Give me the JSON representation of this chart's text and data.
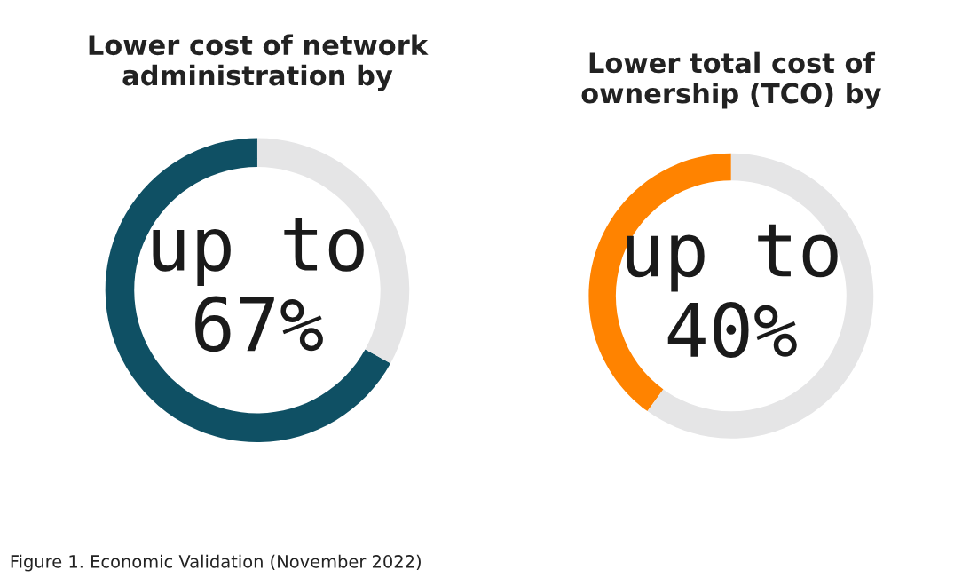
{
  "chart_data": [
    {
      "type": "donut",
      "title": "Lower cost of network\nadministration by",
      "categories": [
        null,
        null
      ],
      "values": [
        67,
        33
      ],
      "colors": [
        "#0f5064",
        "#e5e5e6"
      ],
      "value_labels": [
        "up to\n67%",
        null
      ],
      "annotations": [
        "Figure 1. Economic Validation (November 2022)"
      ]
    },
    {
      "type": "donut",
      "title": "Lower total cost of\nownership (TCO) by",
      "categories": [
        null,
        null
      ],
      "values": [
        40,
        60
      ],
      "colors": [
        "#ff8300",
        "#e5e5e6"
      ],
      "value_labels": [
        "up to\n40%",
        null
      ]
    }
  ]
}
